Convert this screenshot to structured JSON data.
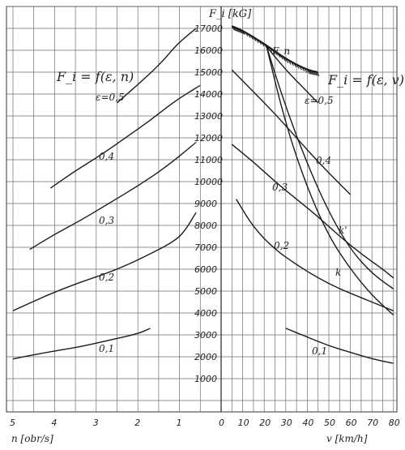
{
  "chart_data": {
    "type": "line",
    "title": "",
    "y_axis": {
      "label": "F_i [kG]",
      "ylim": [
        0,
        17500
      ],
      "ticks": [
        1000,
        2000,
        3000,
        4000,
        5000,
        6000,
        7000,
        8000,
        9000,
        10000,
        11000,
        12000,
        13000,
        14000,
        15000,
        16000,
        17000
      ]
    },
    "left_panel": {
      "formula": "F_i = f(ε, n)",
      "xlabel": "n [obr/s]",
      "x_reversed": true,
      "xlim": [
        0,
        5
      ],
      "tick_labels": [
        "5",
        "4",
        "3",
        "2",
        "1"
      ],
      "tick_values": [
        5,
        4,
        3,
        2,
        1
      ],
      "series": [
        {
          "name": "ε=0,5",
          "x": [
            2.5,
            1.9,
            1.4,
            1.05,
            0.6
          ],
          "y": [
            13600,
            14600,
            15500,
            16300,
            17000
          ]
        },
        {
          "name": "0,4",
          "x": [
            4.1,
            3.5,
            2.9,
            2.3,
            1.7,
            1.1,
            0.5
          ],
          "y": [
            9700,
            10500,
            11200,
            12000,
            12800,
            13700,
            14400
          ]
        },
        {
          "name": "0,3",
          "x": [
            4.6,
            4.0,
            3.4,
            2.7,
            2.0,
            1.3,
            0.6
          ],
          "y": [
            6900,
            7600,
            8200,
            9000,
            9800,
            10700,
            11800
          ]
        },
        {
          "name": "0,2",
          "x": [
            5.0,
            4.2,
            3.4,
            2.6,
            1.8,
            1.1,
            0.85,
            0.6
          ],
          "y": [
            4100,
            4800,
            5400,
            5900,
            6600,
            7300,
            7800,
            8600
          ]
        },
        {
          "name": "0,1",
          "x": [
            5.0,
            4.2,
            3.4,
            2.7,
            2.0,
            1.7
          ],
          "y": [
            1900,
            2200,
            2450,
            2750,
            3050,
            3300
          ]
        }
      ]
    },
    "right_panel": {
      "formula": "F_i = f(ε, v)",
      "xlabel": "v [km/h]",
      "xlim": [
        0,
        80
      ],
      "ticks": [
        0,
        10,
        20,
        30,
        40,
        50,
        60,
        70,
        80
      ],
      "limit_curve": {
        "name": "F_n",
        "x": [
          5,
          10,
          20,
          30,
          40,
          45
        ],
        "y": [
          17100,
          16900,
          16300,
          15600,
          15100,
          15000
        ]
      },
      "series": [
        {
          "name": "ε=0,5",
          "x": [
            20,
            30,
            40,
            45
          ],
          "y": [
            16300,
            15100,
            14100,
            13600
          ]
        },
        {
          "name": "0,4",
          "x": [
            5,
            15,
            25,
            35,
            45,
            55,
            60
          ],
          "y": [
            15100,
            14100,
            13100,
            12000,
            10900,
            9900,
            9400
          ]
        },
        {
          "name": "0,3",
          "x": [
            5,
            15,
            25,
            35,
            45,
            55,
            65,
            75,
            80
          ],
          "y": [
            11700,
            10900,
            10000,
            9200,
            8400,
            7500,
            6700,
            6000,
            5600
          ]
        },
        {
          "name": "0,2",
          "x": [
            7,
            15,
            25,
            35,
            45,
            55,
            65,
            75,
            80
          ],
          "y": [
            9200,
            7900,
            6900,
            6200,
            5600,
            5100,
            4700,
            4300,
            4100
          ]
        },
        {
          "name": "0,1",
          "x": [
            30,
            40,
            50,
            60,
            70,
            80
          ],
          "y": [
            3300,
            2900,
            2500,
            2200,
            1900,
            1700
          ]
        },
        {
          "name": "k",
          "x": [
            21,
            30,
            40,
            50,
            60,
            70,
            80
          ],
          "y": [
            16200,
            12600,
            9700,
            7500,
            6000,
            4800,
            3900
          ]
        },
        {
          "name": "k'",
          "x": [
            21,
            30,
            40,
            50,
            60,
            70,
            80
          ],
          "y": [
            16200,
            13400,
            10800,
            8600,
            6900,
            5800,
            5100
          ]
        }
      ]
    }
  }
}
